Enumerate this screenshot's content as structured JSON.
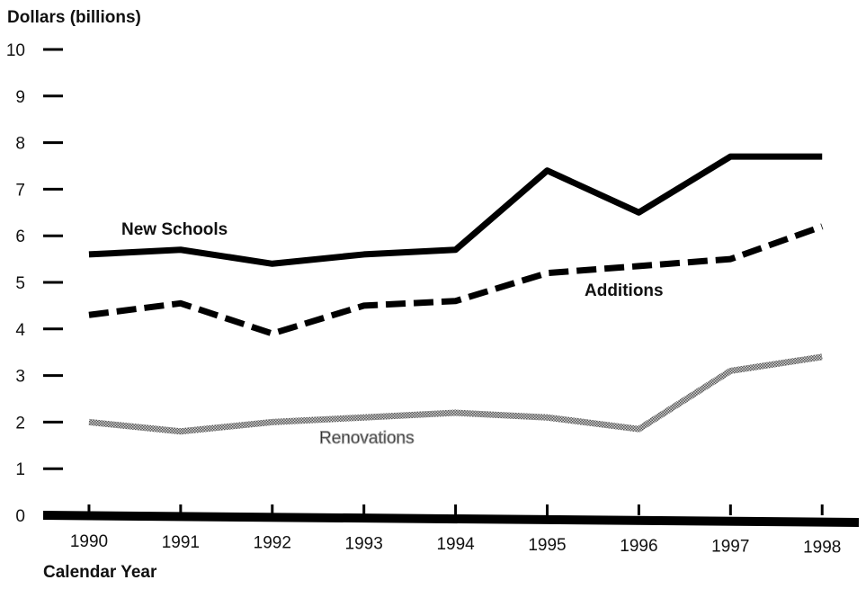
{
  "chart_data": {
    "type": "line",
    "y_label": "Dollars (billions)",
    "x_label": "Calendar Year",
    "x": [
      1990,
      1991,
      1992,
      1993,
      1994,
      1995,
      1996,
      1997,
      1998
    ],
    "xlim": [
      1989.5,
      1998.4
    ],
    "xticks": [
      1990,
      1991,
      1992,
      1993,
      1994,
      1995,
      1996,
      1997,
      1998
    ],
    "ylim": [
      0,
      10
    ],
    "yticks": [
      0,
      1,
      2,
      3,
      4,
      5,
      6,
      7,
      8,
      9,
      10
    ],
    "grid": false,
    "series": [
      {
        "name": "New Schools",
        "color": "#000000",
        "style": "solid",
        "values": [
          5.6,
          5.7,
          5.4,
          5.6,
          5.7,
          7.4,
          6.5,
          7.7,
          7.7
        ]
      },
      {
        "name": "Additions",
        "color": "#000000",
        "style": "dashed",
        "values": [
          4.3,
          4.55,
          3.9,
          4.5,
          4.6,
          5.2,
          5.35,
          5.5,
          6.2
        ]
      },
      {
        "name": "Renovations",
        "color": "#9a9a9a",
        "style": "hatched",
        "values": [
          2.0,
          1.8,
          2.0,
          2.1,
          2.2,
          2.1,
          1.85,
          3.1,
          3.4
        ]
      }
    ]
  }
}
